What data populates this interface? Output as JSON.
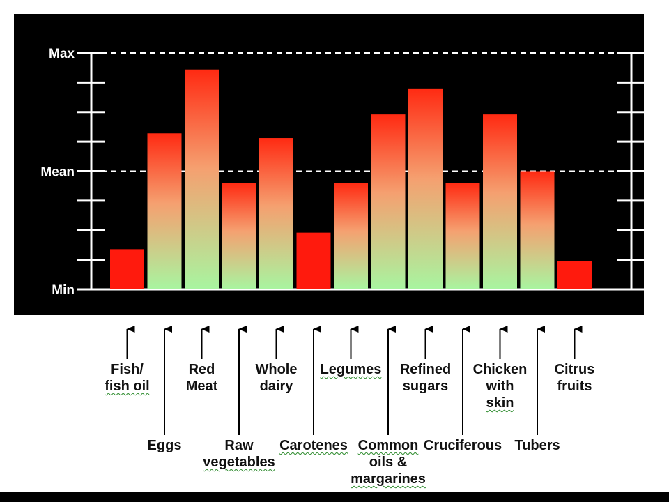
{
  "chart_data": {
    "type": "bar",
    "title": "",
    "xlabel": "",
    "ylabel": "",
    "y_tick_labels": [
      "Max",
      "Mean",
      "Min"
    ],
    "ylim": [
      0,
      1
    ],
    "grid": "dashed lines at Max and Mean",
    "colors": {
      "low_bar": "#ff1a0d",
      "gradient_top": "#ff2a12",
      "gradient_bottom": "#a8f5a0",
      "panel": "#000000"
    },
    "categories": [
      "Fish/ fish oil",
      "Eggs",
      "Red Meat",
      "Raw vegetables",
      "Whole dairy",
      "Carotenes",
      "Legumes",
      "Common oils & margarines",
      "Refined sugars",
      "Cruciferous",
      "Chicken with skin",
      "Tubers",
      "Citrus fruits"
    ],
    "values": [
      0.17,
      0.66,
      0.93,
      0.45,
      0.64,
      0.24,
      0.45,
      0.74,
      0.85,
      0.45,
      0.74,
      0.5,
      0.12
    ],
    "style": [
      "solid",
      "gradient",
      "gradient",
      "gradient",
      "gradient",
      "solid",
      "gradient",
      "gradient",
      "gradient",
      "gradient",
      "gradient",
      "gradient",
      "solid"
    ]
  },
  "labels": [
    {
      "lines": [
        "Fish/",
        "fish oil"
      ],
      "squiggle": [
        1
      ]
    },
    {
      "lines": [
        "Eggs"
      ],
      "squiggle": []
    },
    {
      "lines": [
        "Red",
        "Meat"
      ],
      "squiggle": []
    },
    {
      "lines": [
        "Raw",
        "vegetables"
      ],
      "squiggle": [
        1
      ]
    },
    {
      "lines": [
        "Whole",
        "dairy"
      ],
      "squiggle": []
    },
    {
      "lines": [
        "Carotenes"
      ],
      "squiggle": [
        0
      ]
    },
    {
      "lines": [
        "Legumes"
      ],
      "squiggle": [
        0
      ]
    },
    {
      "lines": [
        "Common",
        "oils &",
        "margarines"
      ],
      "squiggle": [
        0,
        2
      ]
    },
    {
      "lines": [
        "Refined",
        "sugars"
      ],
      "squiggle": []
    },
    {
      "lines": [
        "Cruciferous"
      ],
      "squiggle": []
    },
    {
      "lines": [
        "Chicken",
        "with",
        "skin"
      ],
      "squiggle": [
        2
      ]
    },
    {
      "lines": [
        "Tubers"
      ],
      "squiggle": []
    },
    {
      "lines": [
        "Citrus",
        "fruits"
      ],
      "squiggle": []
    }
  ]
}
